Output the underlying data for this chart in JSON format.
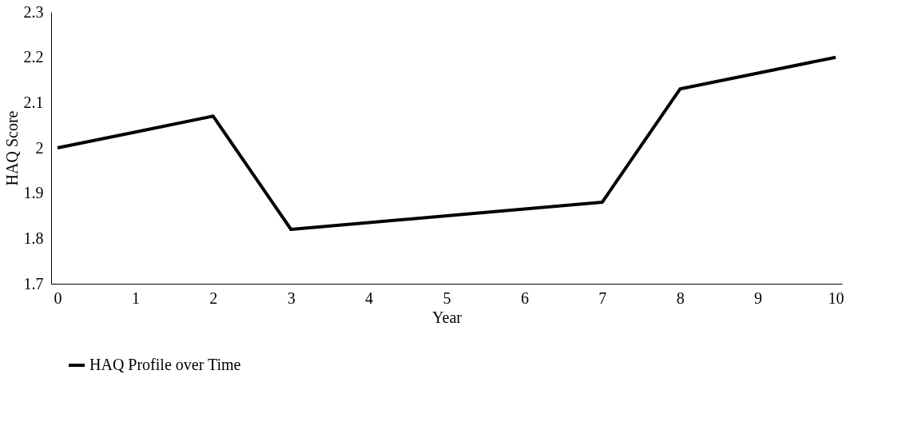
{
  "chart_data": {
    "type": "line",
    "xlabel": "Year",
    "ylabel": "HAQ Score",
    "categories": [
      "0",
      "1",
      "2",
      "3",
      "4",
      "5",
      "6",
      "7",
      "8",
      "9",
      "10"
    ],
    "series": [
      {
        "name": "HAQ Profile over Time",
        "color": "#000000",
        "values": [
          2.0,
          2.035,
          2.07,
          1.82,
          1.835,
          1.85,
          1.865,
          1.88,
          2.13,
          2.165,
          2.2
        ]
      }
    ],
    "ylim": [
      1.7,
      2.3
    ],
    "yticks": [
      1.7,
      1.8,
      1.9,
      2,
      2.1,
      2.2,
      2.3
    ],
    "grid": false,
    "legend": "bottom",
    "marker": "none",
    "line_style": "solid"
  }
}
